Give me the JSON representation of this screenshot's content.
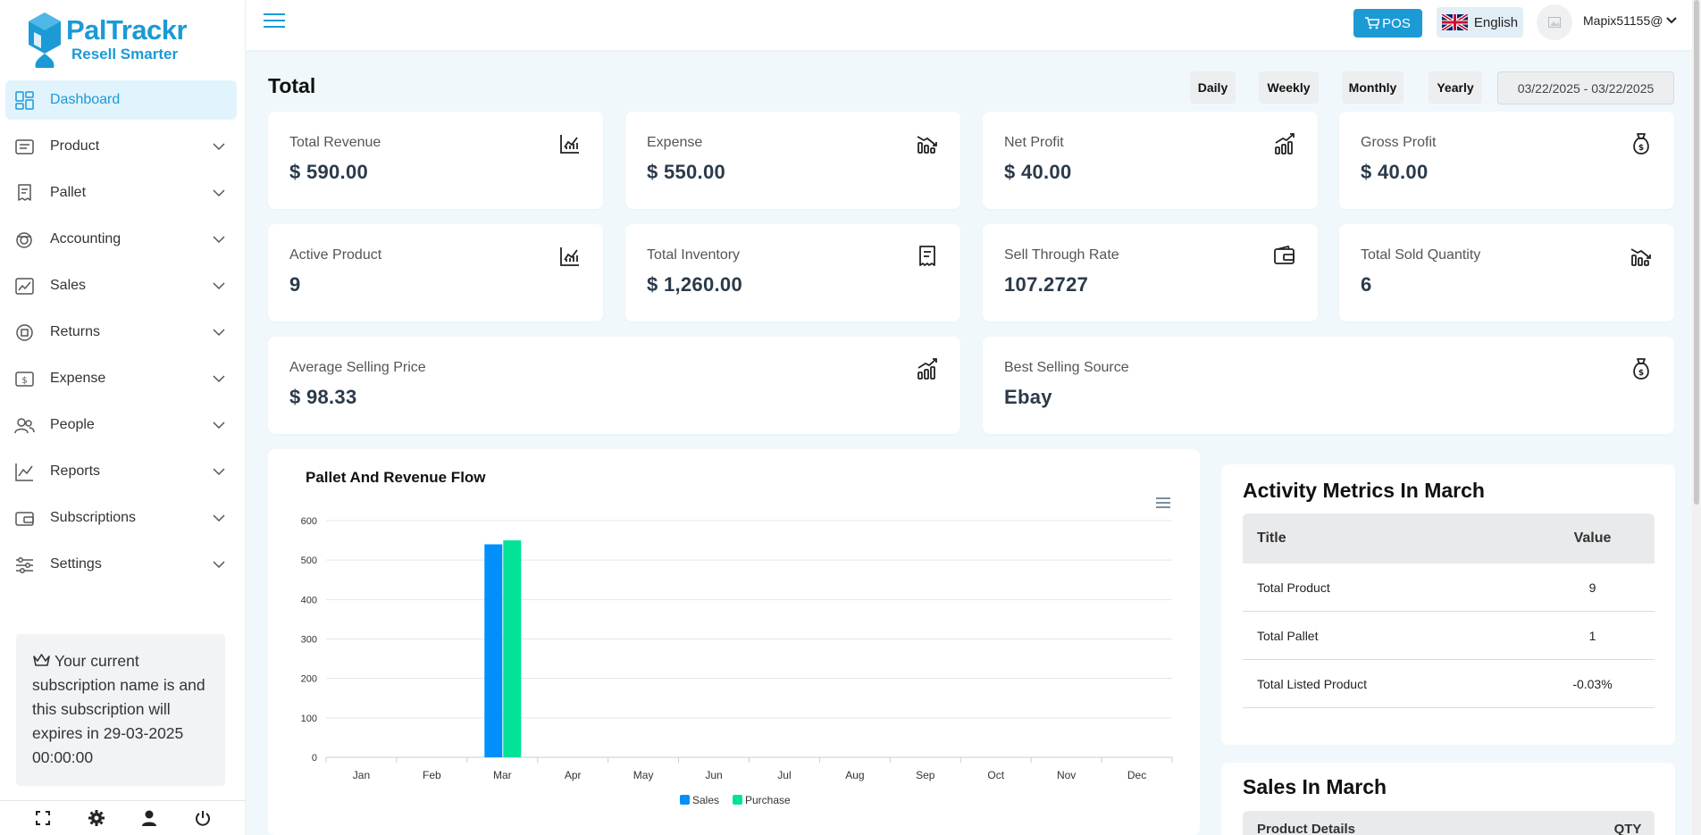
{
  "brand": {
    "name": "PalTrackr",
    "tagline": "Resell Smarter",
    "color": "#1b9ad6"
  },
  "sidebar": {
    "items": [
      {
        "label": "Dashboard",
        "icon": "dashboard-icon",
        "active": true
      },
      {
        "label": "Product",
        "icon": "product-icon"
      },
      {
        "label": "Pallet",
        "icon": "pallet-icon"
      },
      {
        "label": "Accounting",
        "icon": "accounting-icon"
      },
      {
        "label": "Sales",
        "icon": "sales-icon"
      },
      {
        "label": "Returns",
        "icon": "returns-icon"
      },
      {
        "label": "Expense",
        "icon": "expense-icon"
      },
      {
        "label": "People",
        "icon": "people-icon"
      },
      {
        "label": "Reports",
        "icon": "reports-icon"
      },
      {
        "label": "Subscriptions",
        "icon": "subscriptions-icon"
      },
      {
        "label": "Settings",
        "icon": "settings-icon"
      }
    ],
    "subscription_notice": "Your current subscription name is and this subscription will expires in 29-03-2025 00:00:00",
    "bottom_icons": [
      "fullscreen-icon",
      "gear-icon",
      "user-icon",
      "power-icon"
    ]
  },
  "header": {
    "pos_label": "POS",
    "language": "English",
    "user": "Mapix51155@"
  },
  "main": {
    "title": "Total",
    "periods": [
      "Daily",
      "Weekly",
      "Monthly",
      "Yearly"
    ],
    "date_range": "03/22/2025 - 03/22/2025",
    "stats": [
      {
        "label": "Total Revenue",
        "value": "$ 590.00",
        "icon": "chart-up-icon"
      },
      {
        "label": "Expense",
        "value": "$ 550.00",
        "icon": "chart-down-icon"
      },
      {
        "label": "Net Profit",
        "value": "$ 40.00",
        "icon": "bar-growth-icon"
      },
      {
        "label": "Gross Profit",
        "value": "$ 40.00",
        "icon": "money-bag-icon"
      },
      {
        "label": "Active Product",
        "value": "9",
        "icon": "chart-up-icon"
      },
      {
        "label": "Total Inventory",
        "value": "$ 1,260.00",
        "icon": "receipt-icon"
      },
      {
        "label": "Sell Through Rate",
        "value": "107.2727",
        "icon": "wallet-icon"
      },
      {
        "label": "Total Sold Quantity",
        "value": "6",
        "icon": "chart-down-icon"
      },
      {
        "label": "Average Selling Price",
        "value": "$ 98.33",
        "icon": "bar-growth-icon"
      },
      {
        "label": "Best Selling Source",
        "value": "Ebay",
        "icon": "money-bag-icon"
      }
    ]
  },
  "chart_data": {
    "type": "bar",
    "title": "Pallet And Revenue Flow",
    "categories": [
      "Jan",
      "Feb",
      "Mar",
      "Apr",
      "May",
      "Jun",
      "Jul",
      "Aug",
      "Sep",
      "Oct",
      "Nov",
      "Dec"
    ],
    "series": [
      {
        "name": "Sales",
        "color": "#008ffb",
        "values": [
          0,
          0,
          540,
          0,
          0,
          0,
          0,
          0,
          0,
          0,
          0,
          0
        ]
      },
      {
        "name": "Purchase",
        "color": "#00e396",
        "values": [
          0,
          0,
          550,
          0,
          0,
          0,
          0,
          0,
          0,
          0,
          0,
          0
        ]
      }
    ],
    "y_ticks": [
      "0",
      "100",
      "200",
      "300",
      "400",
      "500",
      "600"
    ],
    "ylim": [
      0,
      600
    ],
    "grid": true,
    "legend": "bottom-center"
  },
  "activity": {
    "title": "Activity Metrics In March",
    "headers": [
      "Title",
      "Value"
    ],
    "rows": [
      {
        "title": "Total Product",
        "value": "9"
      },
      {
        "title": "Total Pallet",
        "value": "1"
      },
      {
        "title": "Total Listed Product",
        "value": "-0.03%"
      }
    ]
  },
  "sales_month": {
    "title": "Sales In March",
    "headers": [
      "Product Details",
      "QTY"
    ]
  }
}
